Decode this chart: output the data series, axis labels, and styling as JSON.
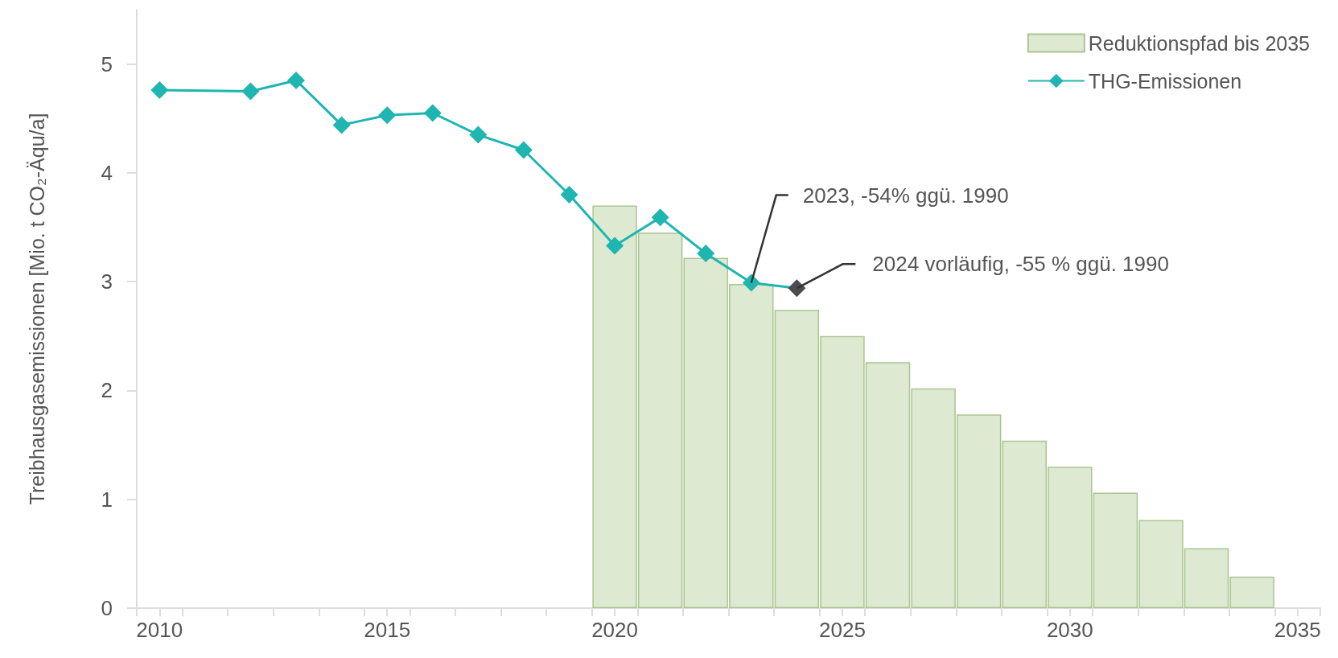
{
  "chart_data": {
    "type": "bar",
    "ylabel": "Treibhausgasemissionen [Mio. t CO₂-Äqu/a]",
    "xlim": [
      2009.5,
      2035.5
    ],
    "xticks": [
      {
        "value": 2009.5,
        "label": null
      },
      2010,
      {
        "value": 2010.5,
        "label": null
      },
      {
        "value": 2011.5,
        "label": null
      },
      {
        "value": 2012.5,
        "label": null
      },
      {
        "value": 2013.5,
        "label": null
      },
      {
        "value": 2014.5,
        "label": null
      },
      2015,
      {
        "value": 2015.5,
        "label": null
      },
      {
        "value": 2016.5,
        "label": null
      },
      {
        "value": 2017.5,
        "label": null
      },
      {
        "value": 2018.5,
        "label": null
      },
      {
        "value": 2019.5,
        "label": null
      },
      2020,
      {
        "value": 2020.5,
        "label": null
      },
      {
        "value": 2021.5,
        "label": null
      },
      {
        "value": 2022.5,
        "label": null
      },
      {
        "value": 2023.5,
        "label": null
      },
      {
        "value": 2024.5,
        "label": null
      },
      2025,
      {
        "value": 2025.5,
        "label": null
      },
      {
        "value": 2026.5,
        "label": null
      },
      {
        "value": 2027.5,
        "label": null
      },
      {
        "value": 2028.5,
        "label": null
      },
      {
        "value": 2029.5,
        "label": null
      },
      2030,
      {
        "value": 2030.5,
        "label": null
      },
      {
        "value": 2031.5,
        "label": null
      },
      {
        "value": 2032.5,
        "label": null
      },
      {
        "value": 2033.5,
        "label": null
      },
      {
        "value": 2034.5,
        "label": null
      },
      2035,
      {
        "value": 2035.5,
        "label": null
      }
    ],
    "ylim": [
      0,
      5.5
    ],
    "yticks": [
      0,
      1,
      2,
      3,
      4,
      5
    ],
    "grid": false,
    "legend": "top right",
    "series": [
      {
        "name": "Reduktionspfad bis 2035",
        "color": "#dde9d0",
        "x": [
          2020,
          2021,
          2022,
          2023,
          2024,
          2025,
          2026,
          2027,
          2028,
          2029,
          2030,
          2031,
          2032,
          2033,
          2034
        ],
        "values": [
          3.7,
          3.45,
          3.22,
          2.98,
          2.74,
          2.5,
          2.26,
          2.02,
          1.78,
          1.54,
          1.3,
          1.06,
          0.81,
          0.55,
          0.29
        ]
      },
      {
        "type": "line",
        "name": "THG-Emissionen",
        "color": "#1fb5b0",
        "marker": "diamond",
        "x": [
          2010,
          2012,
          2013,
          2014,
          2015,
          2016,
          2017,
          2018,
          2019,
          2020,
          2021,
          2022,
          2023,
          2024
        ],
        "values": [
          4.76,
          4.75,
          4.85,
          4.44,
          4.53,
          4.55,
          4.35,
          4.21,
          3.8,
          3.33,
          3.59,
          3.26,
          2.99,
          2.94
        ],
        "colors": [
          "#1fb5b0",
          "#1fb5b0",
          "#1fb5b0",
          "#1fb5b0",
          "#1fb5b0",
          "#1fb5b0",
          "#1fb5b0",
          "#1fb5b0",
          "#1fb5b0",
          "#1fb5b0",
          "#1fb5b0",
          "#1fb5b0",
          "#1fb5b0",
          "#4a4a50"
        ]
      }
    ],
    "annotations": [
      {
        "text": "2023, -54% ggü. 1990",
        "x": 2023,
        "y": 2.99
      },
      {
        "text": "2024 vorläufig, -55 % ggü. 1990",
        "x": 2024,
        "y": 2.94
      }
    ]
  }
}
